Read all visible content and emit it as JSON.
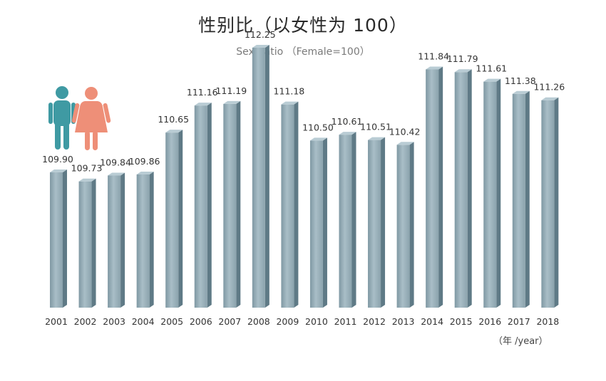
{
  "title": "性别比（以女性为 100）",
  "subtitle": "Sex Ratio （Female=100）",
  "unit_label": "（年 /year）",
  "colors": {
    "bar_front": "#8fa6b0",
    "bar_side": "#5f7a86",
    "bar_top": "#b9ccd4",
    "male_icon": "#3f9aa3",
    "female_icon": "#ee8f78"
  },
  "icons": [
    "male-person-icon",
    "female-person-icon"
  ],
  "chart_data": {
    "type": "bar",
    "categories": [
      "2001",
      "2002",
      "2003",
      "2004",
      "2005",
      "2006",
      "2007",
      "2008",
      "2009",
      "2010",
      "2011",
      "2012",
      "2013",
      "2014",
      "2015",
      "2016",
      "2017",
      "2018"
    ],
    "values": [
      109.9,
      109.73,
      109.84,
      109.86,
      110.65,
      111.16,
      111.19,
      112.25,
      111.18,
      110.5,
      110.61,
      110.51,
      110.42,
      111.84,
      111.79,
      111.61,
      111.38,
      111.26
    ],
    "value_labels": [
      "109.90",
      "109.73",
      "109.84",
      "109.86",
      "110.65",
      "111.16",
      "111.19",
      "112.25",
      "111.18",
      "110.50",
      "110.61",
      "110.51",
      "110.42",
      "111.84",
      "111.79",
      "111.61",
      "111.38",
      "111.26"
    ],
    "title": "性别比（以女性为 100）",
    "subtitle": "Sex Ratio （Female=100）",
    "xlabel": "（年 /year）",
    "ylabel": "",
    "grid": false,
    "legend": "none"
  }
}
